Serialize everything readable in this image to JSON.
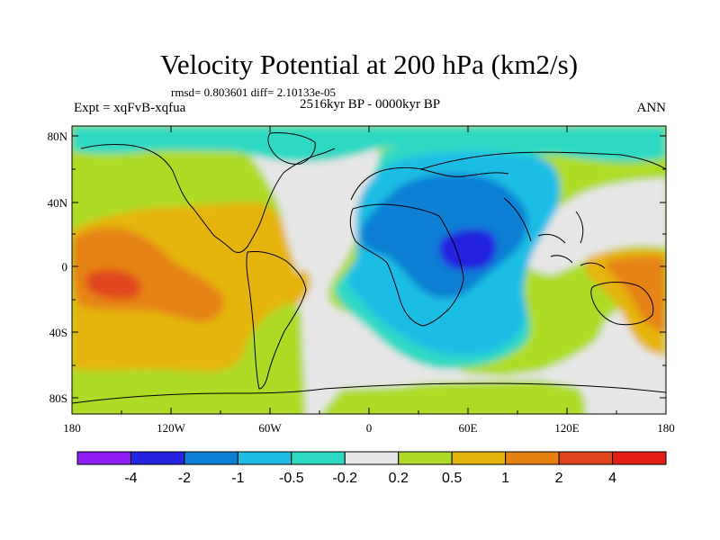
{
  "figure": {
    "title": "Velocity Potential at 200 hPa (km2/s)",
    "stats": "rmsd= 0.803601 diff= 2.10133e-05",
    "left_label": "Expt = xqFvB-xqfua",
    "center_label": "2516kyr BP - 0000kyr BP",
    "right_label": "ANN"
  },
  "axes": {
    "lat_ticks": [
      "80N",
      "40N",
      "0",
      "40S",
      "80S"
    ],
    "lon_ticks": [
      "180",
      "120W",
      "60W",
      "0",
      "60E",
      "120E",
      "180"
    ]
  },
  "colorbar": {
    "colors": [
      "#8f1cf0",
      "#2424e0",
      "#0f7fd4",
      "#1ebde5",
      "#2ed9c4",
      "#e6e6e6",
      "#aedb28",
      "#e5b50e",
      "#e68212",
      "#e0461d",
      "#e41e15"
    ],
    "labels": [
      "-4",
      "-2",
      "-1",
      "-0.5",
      "-0.2",
      "0.2",
      "0.5",
      "1",
      "2",
      "4"
    ]
  },
  "chart_data": {
    "type": "filled-contour-map",
    "title": "Velocity Potential at 200 hPa (km2/s)",
    "variable": "velocity potential difference",
    "units": "km2/s",
    "levels": [
      -4,
      -2,
      -1,
      -0.5,
      -0.2,
      0.2,
      0.5,
      1,
      2,
      4
    ],
    "lon_range": [
      -180,
      180
    ],
    "lat_range": [
      -90,
      90
    ],
    "features": [
      {
        "region": "central Africa / western Indian Ocean",
        "approx_center": [
          40,
          0
        ],
        "min_value_class": "-4 to -2",
        "sign": "negative"
      },
      {
        "region": "eastern tropical Pacific",
        "approx_center": [
          -160,
          -10
        ],
        "max_value_class": "2 to 4",
        "sign": "positive"
      },
      {
        "region": "western Pacific / Maritime Continent",
        "approx_center": [
          170,
          0
        ],
        "max_value_class": "1 to 2",
        "sign": "positive"
      }
    ]
  }
}
